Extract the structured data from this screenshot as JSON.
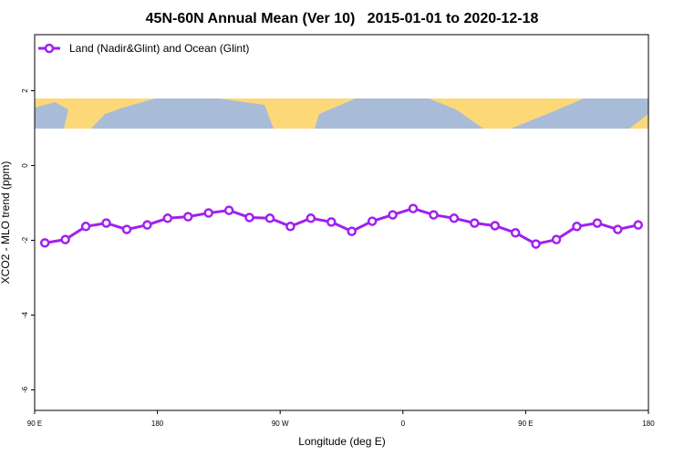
{
  "chart_data": {
    "type": "line",
    "title": "45N-60N Annual Mean (Ver 10)   2015-01-01 to 2020-12-18",
    "x_label": "Longitude (deg E)",
    "y_label": "XCO2 - MLO trend (ppm)",
    "x": [
      97.5,
      112.5,
      127.5,
      142.5,
      157.5,
      172.5,
      187.5,
      202.5,
      217.5,
      232.5,
      247.5,
      262.5,
      277.5,
      292.5,
      307.5,
      322.5,
      337.5,
      352.5,
      367.5,
      382.5,
      397.5,
      412.5,
      427.5,
      442.5,
      457.5,
      472.5,
      487.5,
      502.5,
      517.5,
      532.5
    ],
    "series": [
      {
        "name": "Land (Nadir&Glint) and Ocean (Glint)",
        "color": "#a020f0",
        "values": [
          -2.07,
          -1.98,
          -1.63,
          -1.54,
          -1.71,
          -1.59,
          -1.41,
          -1.37,
          -1.27,
          -1.2,
          -1.39,
          -1.41,
          -1.63,
          -1.41,
          -1.51,
          -1.76,
          -1.49,
          -1.32,
          -1.15,
          -1.32,
          -1.41,
          -1.54,
          -1.61,
          -1.8,
          -2.1,
          -1.98,
          -1.63,
          -1.54,
          -1.71,
          -1.59
        ]
      }
    ],
    "xlim": [
      90,
      540
    ],
    "xticks": [
      {
        "value": 90,
        "label": "90 E"
      },
      180,
      {
        "value": 270,
        "label": "90 W"
      },
      {
        "value": 360,
        "label": "0"
      },
      {
        "value": 450,
        "label": "90 E"
      },
      {
        "value": 540,
        "label": "180"
      }
    ],
    "ylim": [
      -6.55,
      3.5
    ],
    "yticks": [
      -6,
      -4,
      -2,
      0,
      2
    ],
    "legend": "top-left"
  }
}
